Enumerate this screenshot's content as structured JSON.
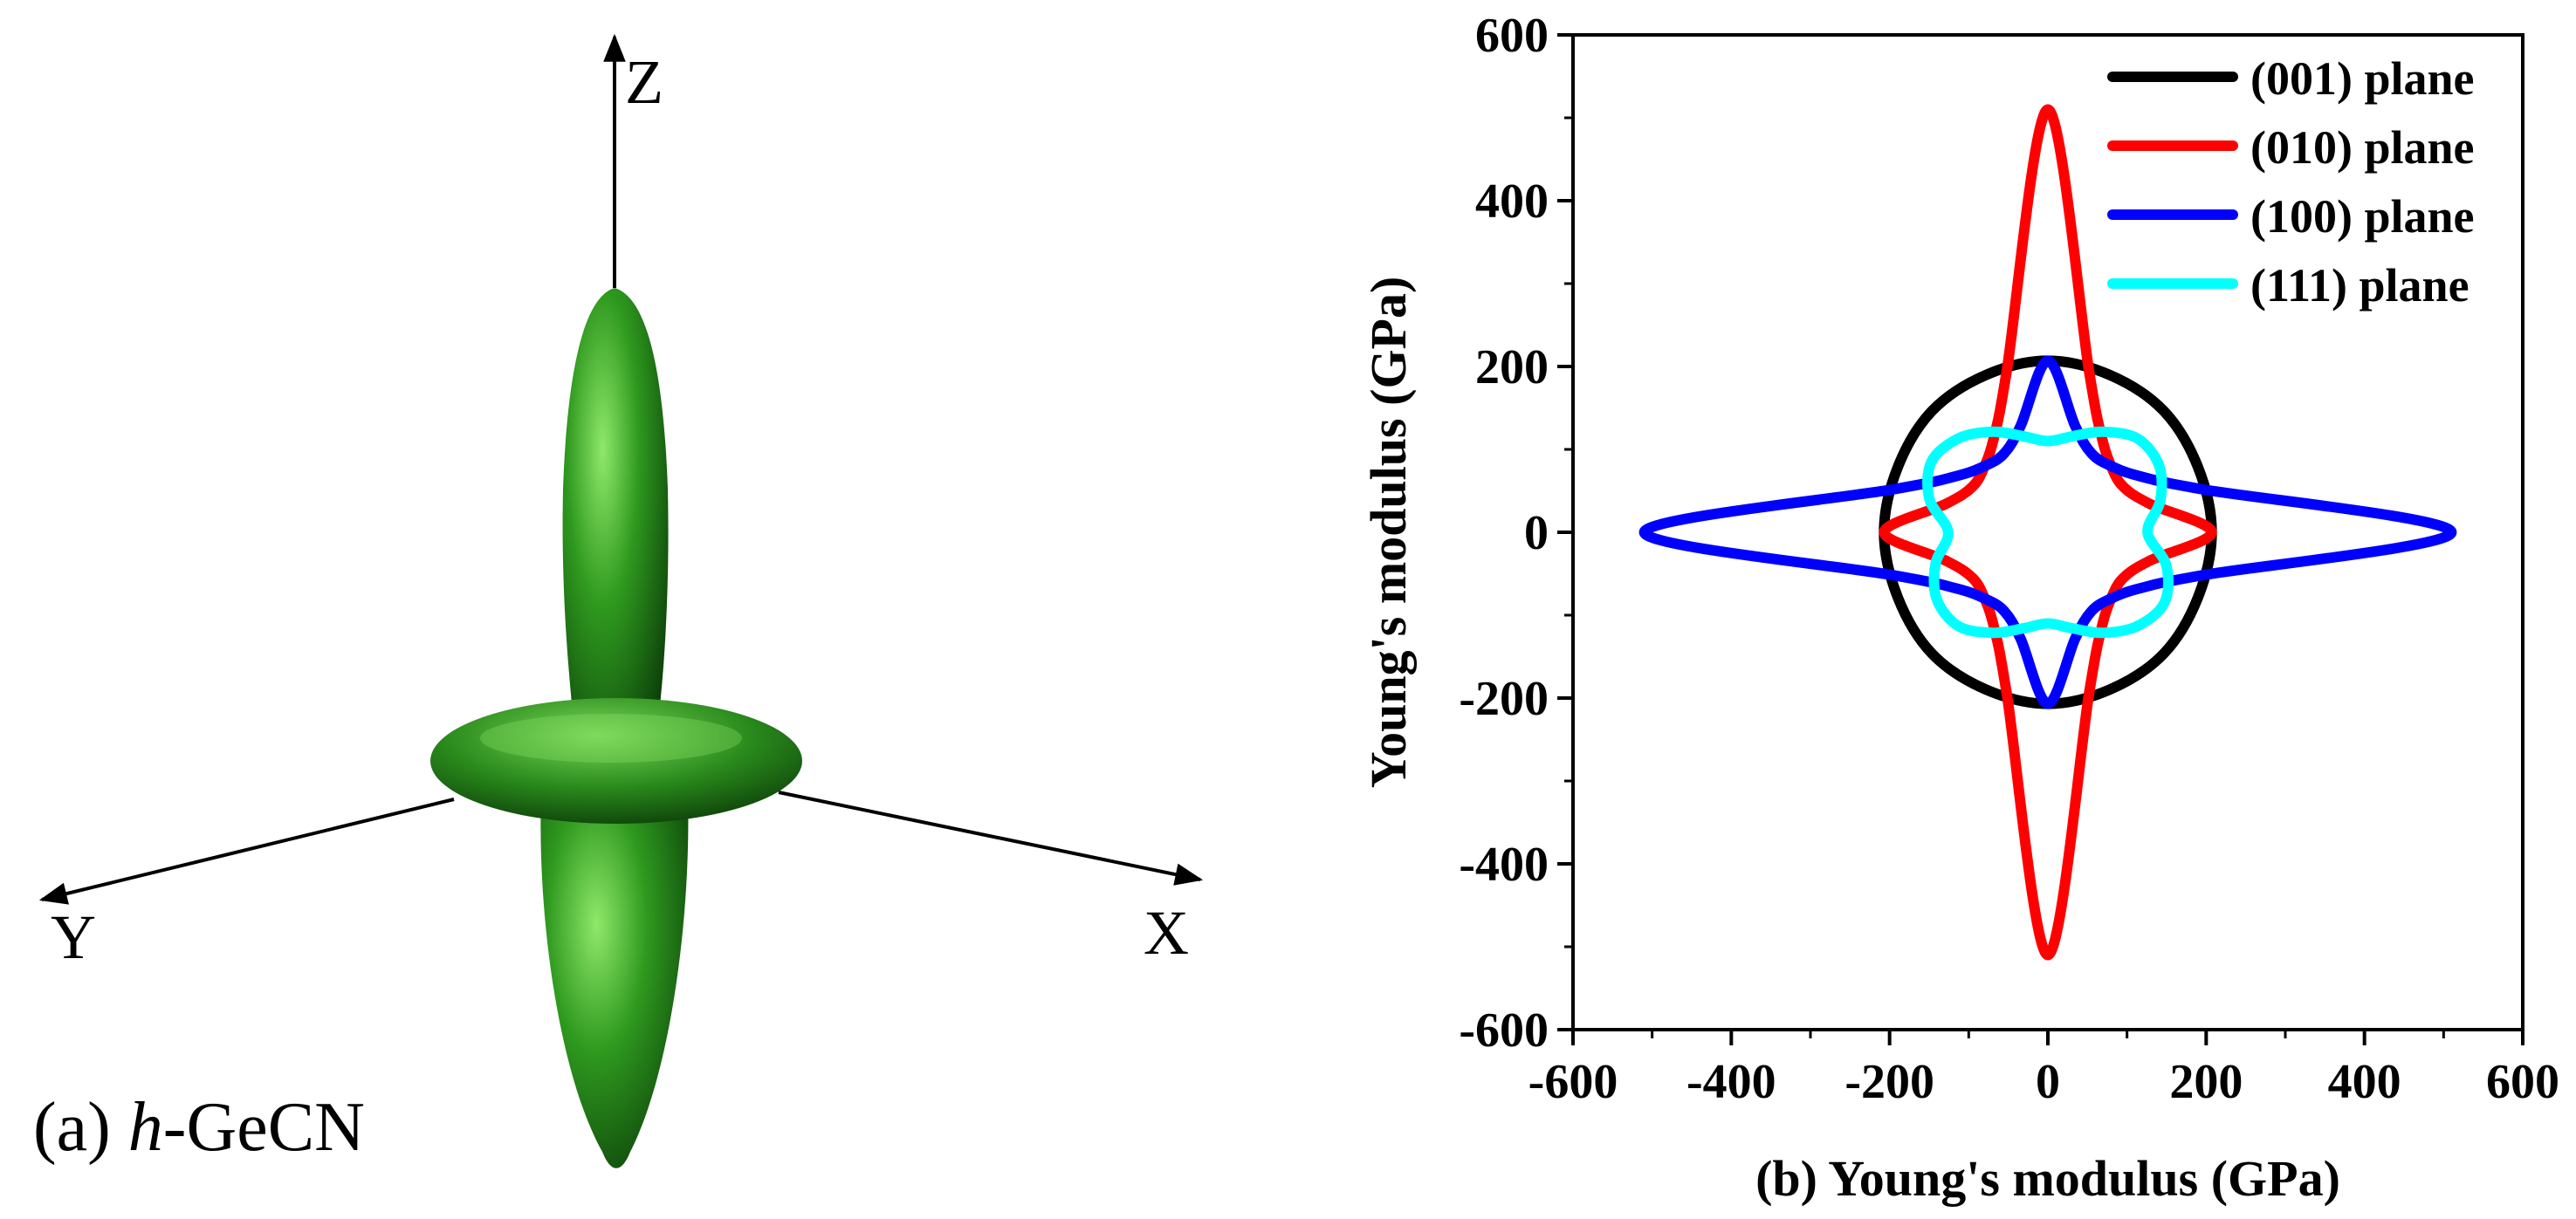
{
  "panel_a": {
    "caption_prefix": "(a) ",
    "caption_italic": "h",
    "caption_suffix": "-GeCN",
    "axis_labels": {
      "z": "Z",
      "y": "Y",
      "x": "X"
    },
    "surface_color": "#2e8b1e",
    "surface_dark": "#0f4a0a",
    "surface_light": "#7fe05a"
  },
  "panel_b": {
    "xlabel": "(b) Young's modulus (GPa)",
    "ylabel": "Young's modulus (GPa)"
  },
  "chart_data": {
    "type": "line",
    "subtype": "polar-cross-section",
    "xlabel": "(b) Young's modulus (GPa)",
    "ylabel": "Young's modulus (GPa)",
    "xlim": [
      -600,
      600
    ],
    "ylim": [
      -600,
      600
    ],
    "xticks": [
      -600,
      -400,
      -200,
      0,
      200,
      400,
      600
    ],
    "yticks": [
      -600,
      -400,
      -200,
      0,
      200,
      400,
      600
    ],
    "grid": false,
    "legend_position": "top-right",
    "series": [
      {
        "name": "(001) plane",
        "color": "#000000",
        "angle_deg": [
          0,
          45,
          90,
          135,
          180,
          225,
          270,
          315,
          360
        ],
        "radius_gpa": [
          207,
          207,
          207,
          207,
          207,
          207,
          207,
          207,
          207
        ]
      },
      {
        "name": "(010) plane",
        "color": "#ff0000",
        "angle_deg": [
          0,
          15,
          30,
          45,
          60,
          75,
          90,
          105,
          120,
          135,
          150,
          165,
          180,
          195,
          210,
          225,
          240,
          255,
          270,
          285,
          300,
          315,
          330,
          345,
          360
        ],
        "radius_gpa": [
          207,
          133,
          110,
          113,
          135,
          201,
          510,
          201,
          135,
          113,
          110,
          133,
          207,
          133,
          110,
          113,
          135,
          201,
          510,
          201,
          135,
          113,
          110,
          133,
          207
        ]
      },
      {
        "name": "(100) plane",
        "color": "#0000ff",
        "angle_deg": [
          0,
          15,
          30,
          45,
          60,
          75,
          90,
          105,
          120,
          135,
          150,
          165,
          180,
          195,
          210,
          225,
          240,
          255,
          270,
          285,
          300,
          315,
          330,
          345,
          360
        ],
        "radius_gpa": [
          510,
          201,
          135,
          113,
          110,
          133,
          207,
          133,
          110,
          113,
          135,
          201,
          510,
          201,
          135,
          113,
          110,
          133,
          207,
          133,
          110,
          113,
          135,
          201,
          510
        ]
      },
      {
        "name": "(111) plane",
        "color": "#00ffff",
        "angle_deg": [
          0,
          15,
          30,
          45,
          60,
          75,
          90,
          105,
          120,
          135,
          150,
          165,
          180,
          195,
          210,
          225,
          240,
          255,
          270,
          285,
          300,
          315,
          330,
          345,
          360
        ],
        "radius_gpa": [
          126,
          147,
          162,
          160,
          140,
          120,
          110,
          120,
          140,
          160,
          170,
          155,
          126,
          147,
          162,
          160,
          140,
          120,
          110,
          120,
          140,
          160,
          170,
          155,
          126
        ]
      }
    ]
  }
}
